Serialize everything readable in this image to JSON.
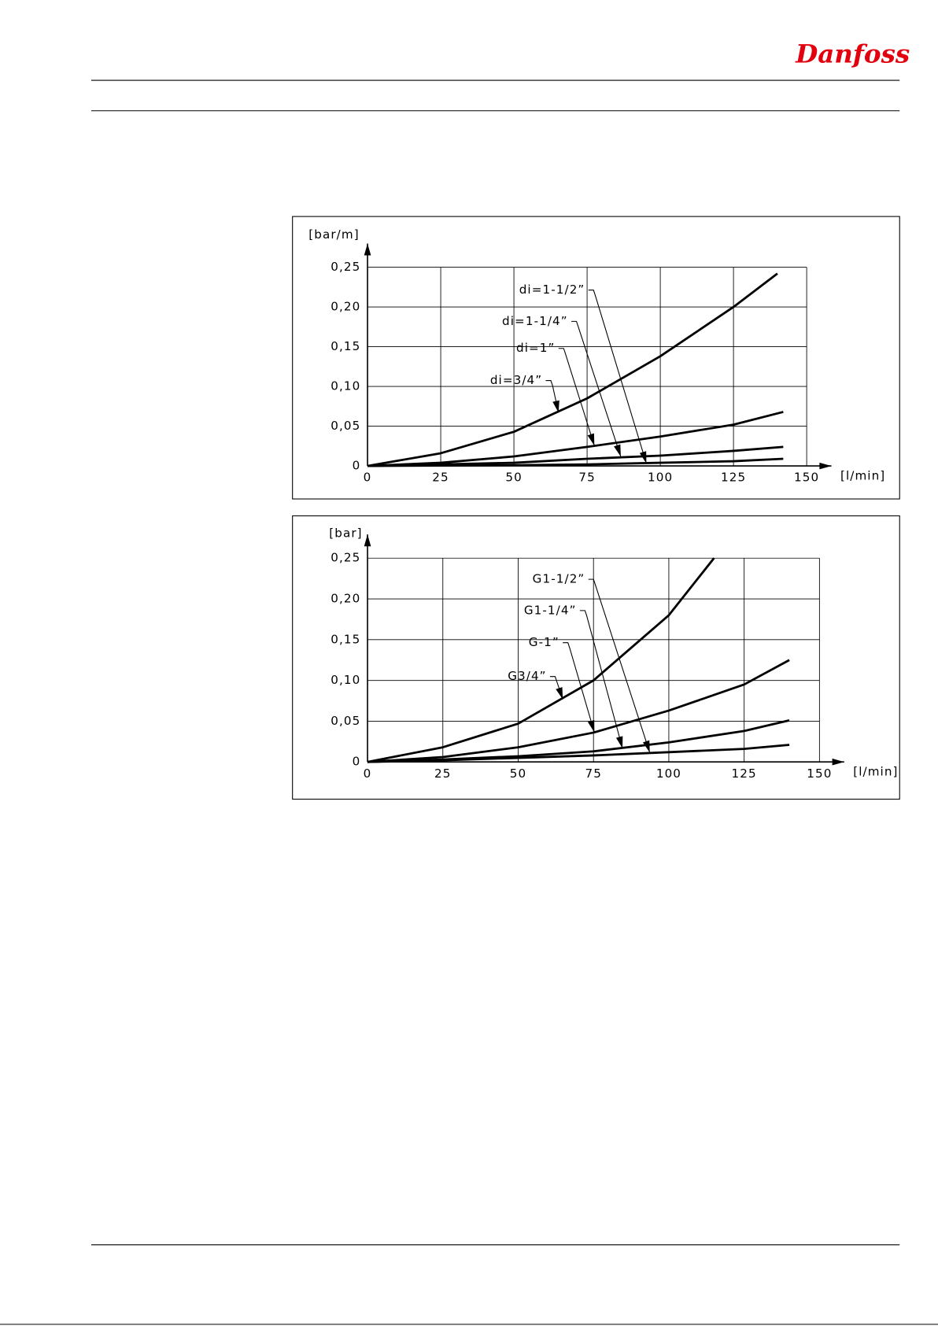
{
  "header": {
    "logo": "Danfoss"
  },
  "chart_data": [
    {
      "type": "line",
      "ylabel": "[bar/m]",
      "xlabel": "[l/min]",
      "xlim": [
        0,
        150
      ],
      "xticks": [
        0,
        25,
        50,
        75,
        100,
        125,
        150
      ],
      "ylim": [
        0,
        0.25
      ],
      "yticks": [
        0,
        {
          "value": 0.05,
          "label": "0,05"
        },
        {
          "value": 0.1,
          "label": "0,10"
        },
        {
          "value": 0.15,
          "label": "0,15"
        },
        {
          "value": 0.2,
          "label": "0,20"
        },
        {
          "value": 0.25,
          "label": "0,25"
        }
      ],
      "grid": true,
      "series": [
        {
          "name": "di=3/4”",
          "color": "#000000",
          "x": [
            0,
            25,
            50,
            75,
            100,
            125,
            140
          ],
          "values": [
            0,
            0.016,
            0.043,
            0.085,
            0.138,
            0.2,
            0.242
          ]
        },
        {
          "name": "di=1”",
          "color": "#000000",
          "x": [
            0,
            25,
            50,
            75,
            100,
            125,
            142
          ],
          "values": [
            0,
            0.004,
            0.012,
            0.024,
            0.037,
            0.052,
            0.068
          ]
        },
        {
          "name": "di=1-1/4”",
          "color": "#000000",
          "x": [
            0,
            25,
            50,
            75,
            100,
            125,
            142
          ],
          "values": [
            0,
            0.002,
            0.004,
            0.009,
            0.013,
            0.019,
            0.024
          ]
        },
        {
          "name": "di=1-1/2”",
          "color": "#000000",
          "x": [
            0,
            25,
            50,
            75,
            100,
            125,
            142
          ],
          "values": [
            0,
            0.0005,
            0.001,
            0.002,
            0.004,
            0.006,
            0.009
          ]
        }
      ]
    },
    {
      "type": "line",
      "ylabel": "[bar]",
      "xlabel": "[l/min]",
      "xlim": [
        0,
        150
      ],
      "xticks": [
        0,
        25,
        50,
        75,
        100,
        125,
        150
      ],
      "ylim": [
        0,
        0.25
      ],
      "yticks": [
        0,
        {
          "value": 0.05,
          "label": "0,05"
        },
        {
          "value": 0.1,
          "label": "0,10"
        },
        {
          "value": 0.15,
          "label": "0,15"
        },
        {
          "value": 0.2,
          "label": "0,20"
        },
        {
          "value": 0.25,
          "label": "0,25"
        }
      ],
      "grid": true,
      "series": [
        {
          "name": "G3/4”",
          "color": "#000000",
          "x": [
            0,
            25,
            50,
            75,
            100,
            115
          ],
          "values": [
            0,
            0.018,
            0.047,
            0.1,
            0.18,
            0.25
          ]
        },
        {
          "name": "G-1”",
          "color": "#000000",
          "x": [
            0,
            25,
            50,
            75,
            100,
            125,
            140
          ],
          "values": [
            0,
            0.006,
            0.018,
            0.036,
            0.063,
            0.095,
            0.125
          ]
        },
        {
          "name": "G1-1/4”",
          "color": "#000000",
          "x": [
            0,
            25,
            50,
            75,
            100,
            125,
            140
          ],
          "values": [
            0,
            0.003,
            0.007,
            0.013,
            0.024,
            0.038,
            0.051
          ]
        },
        {
          "name": "G1-1/2”",
          "color": "#000000",
          "x": [
            0,
            25,
            50,
            75,
            100,
            125,
            140
          ],
          "values": [
            0,
            0.002,
            0.005,
            0.008,
            0.012,
            0.016,
            0.021
          ]
        }
      ]
    }
  ]
}
